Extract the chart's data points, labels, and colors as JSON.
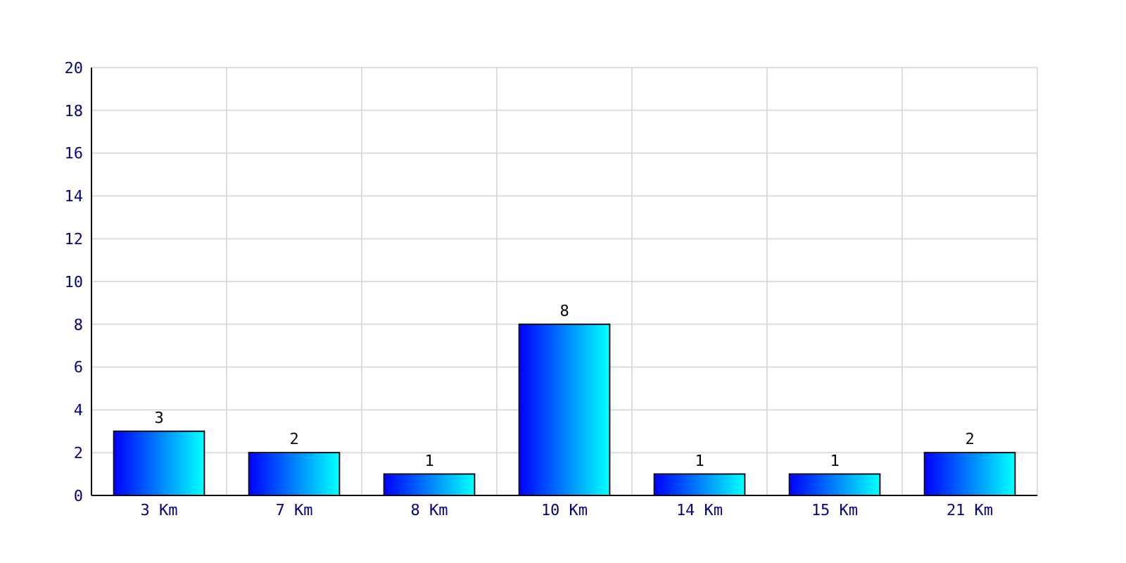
{
  "chart_data": {
    "type": "bar",
    "categories": [
      "3 Km",
      "7 Km",
      "8 Km",
      "10 Km",
      "14 Km",
      "15 Km",
      "21 Km"
    ],
    "values": [
      3,
      2,
      1,
      8,
      1,
      1,
      2
    ],
    "color": "#0080ff",
    "ylim": [
      0,
      20
    ],
    "yticks": [
      0,
      2,
      4,
      6,
      8,
      10,
      12,
      14,
      16,
      18,
      20
    ],
    "grid": true,
    "data_labels": true
  }
}
